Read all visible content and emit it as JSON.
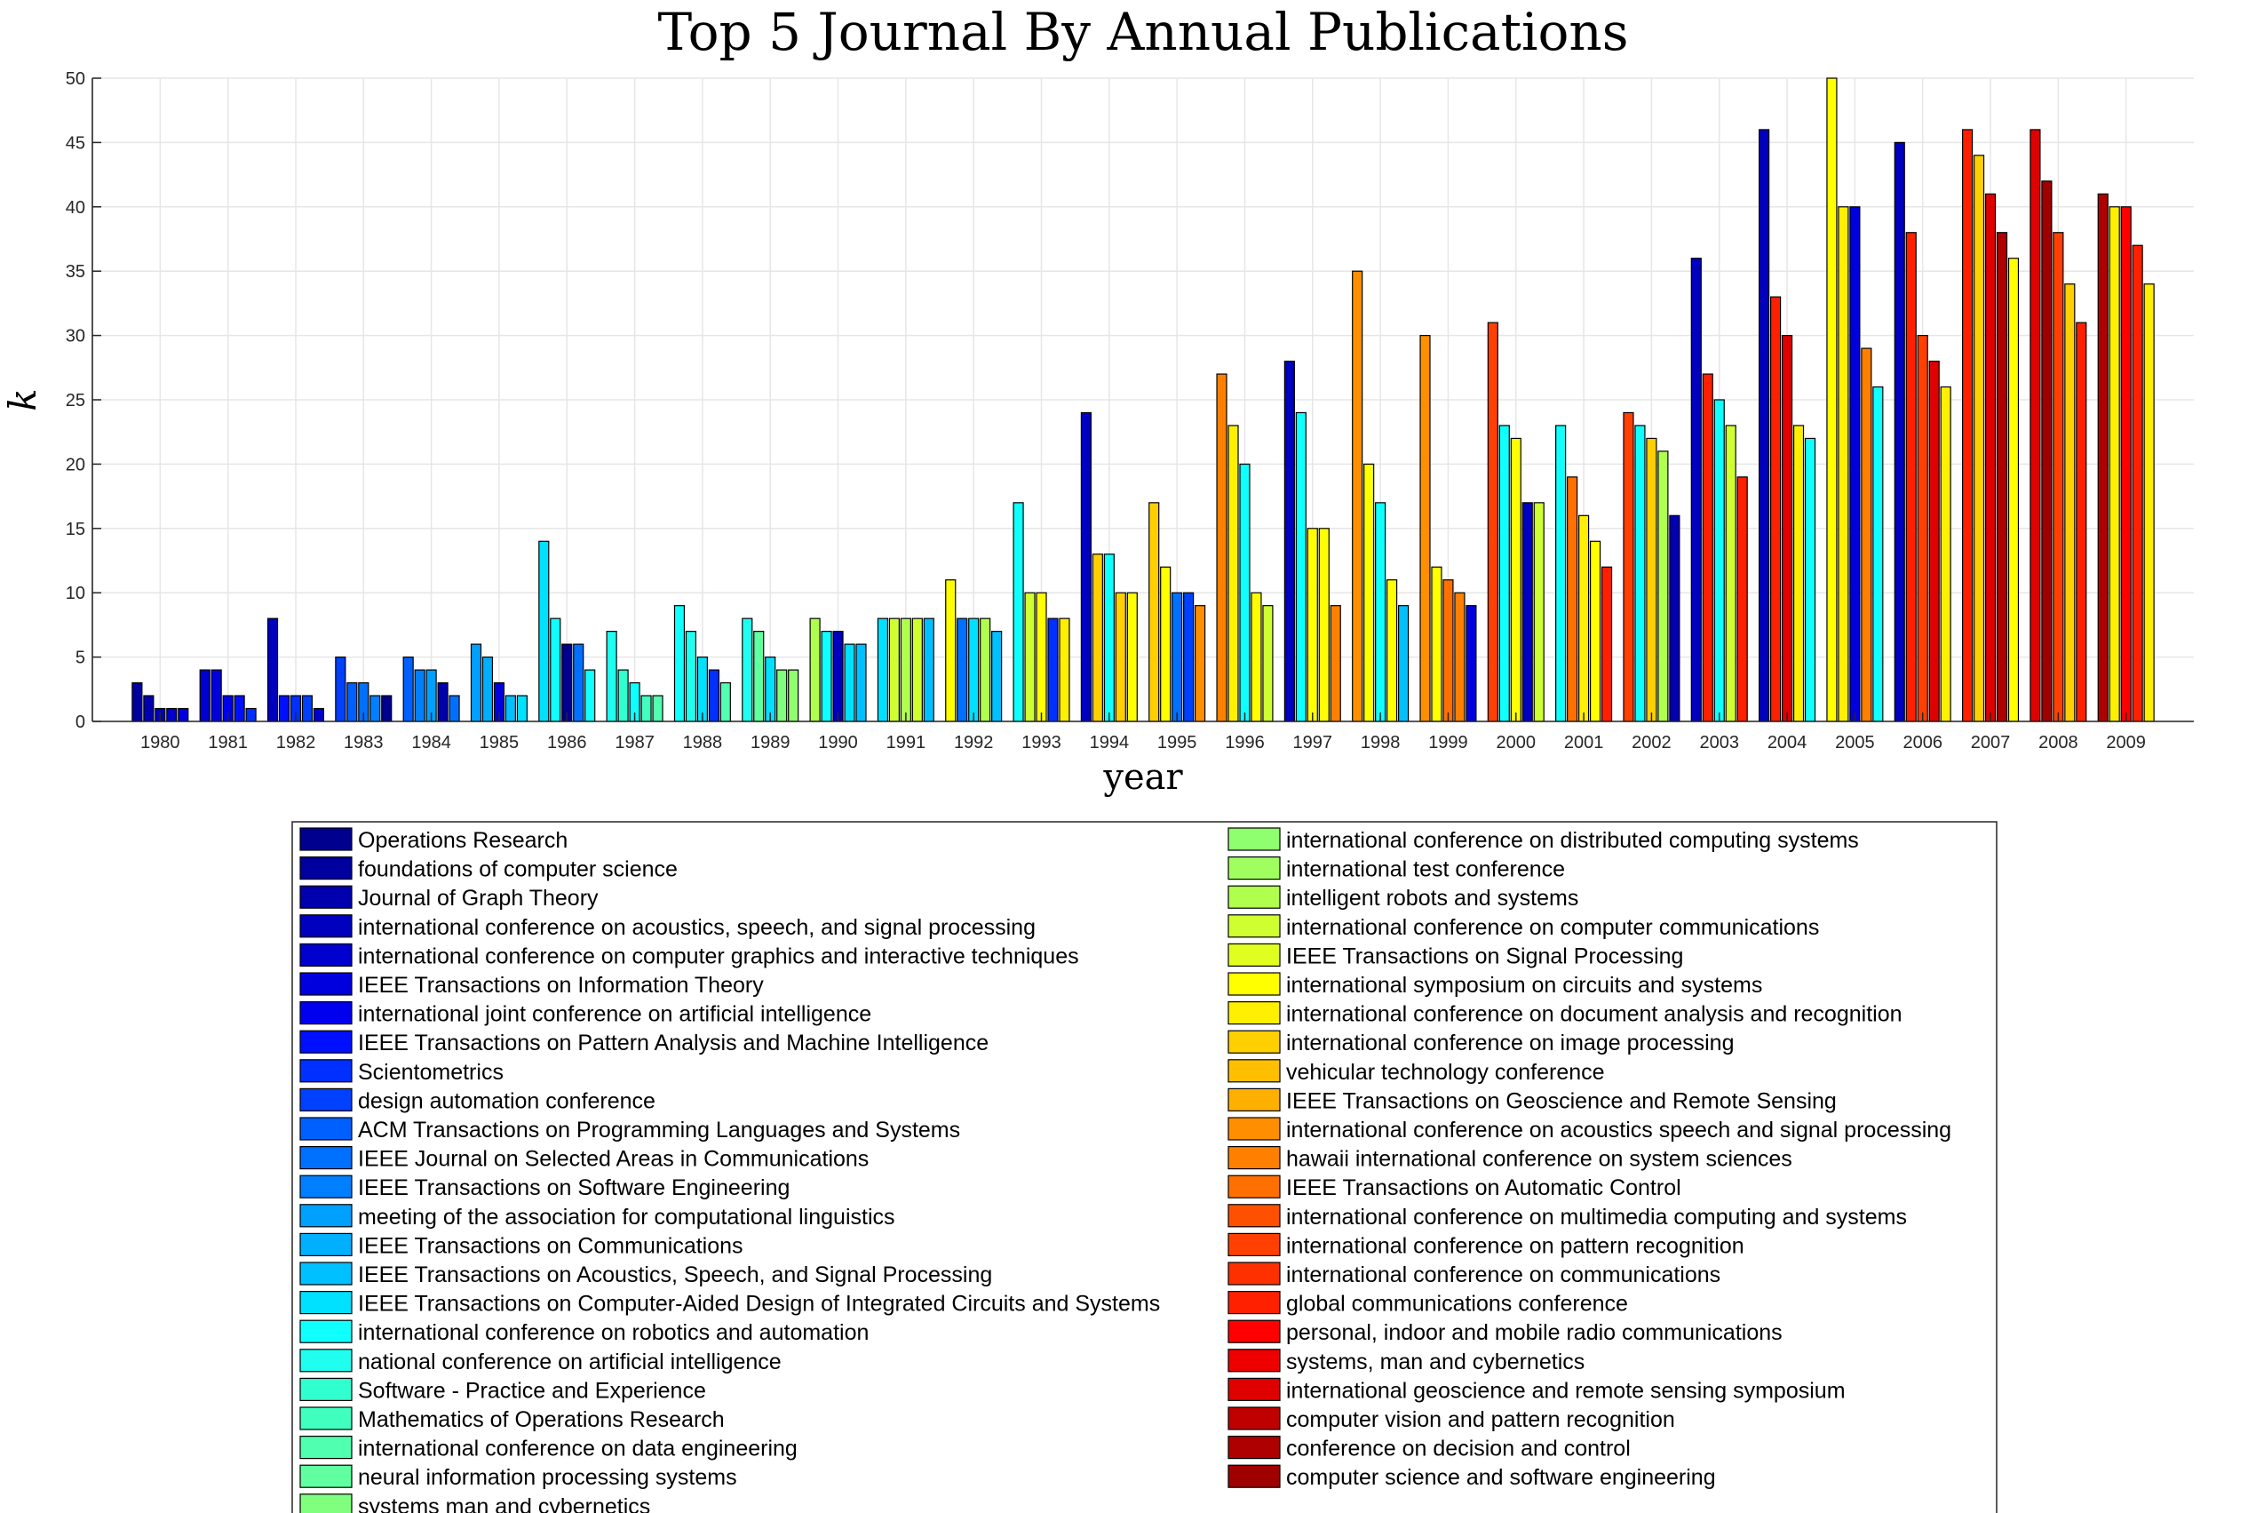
{
  "chart_data": {
    "type": "bar",
    "title": "Top 5 Journal By Annual Publications",
    "xlabel": "year",
    "ylabel": "k",
    "ylim": [
      0,
      50
    ],
    "yticks": [
      0,
      5,
      10,
      15,
      20,
      25,
      30,
      35,
      40,
      45,
      50
    ],
    "grid": true,
    "legend_position": "below",
    "categories": [
      "1980",
      "1981",
      "1982",
      "1983",
      "1984",
      "1985",
      "1986",
      "1987",
      "1988",
      "1989",
      "1990",
      "1991",
      "1992",
      "1993",
      "1994",
      "1995",
      "1996",
      "1997",
      "1998",
      "1999",
      "2000",
      "2001",
      "2002",
      "2003",
      "2004",
      "2005",
      "2006",
      "2007",
      "2008",
      "2009"
    ],
    "legend": [
      "Operations Research",
      "foundations of computer science",
      "Journal of Graph Theory",
      "international conference on acoustics, speech, and signal processing",
      "international conference on computer graphics and interactive techniques",
      "IEEE Transactions on Information Theory",
      "international joint conference on artificial intelligence",
      "IEEE Transactions on Pattern Analysis and Machine Intelligence",
      "Scientometrics",
      "design automation conference",
      "ACM Transactions on Programming Languages and Systems",
      "IEEE Journal on Selected Areas in Communications",
      "IEEE Transactions on Software Engineering",
      "meeting of the association for computational linguistics",
      "IEEE Transactions on Communications",
      "IEEE Transactions on Acoustics, Speech, and Signal Processing",
      "IEEE Transactions on Computer-Aided Design of Integrated Circuits and Systems",
      "international conference on robotics and automation",
      "national conference on artificial intelligence",
      "Software - Practice and Experience",
      "Mathematics of Operations Research",
      "international conference on data engineering",
      "neural information processing systems",
      "systems man and cybernetics",
      "international conference on distributed computing systems",
      "international test conference",
      "intelligent robots and systems",
      "international conference on computer communications",
      "IEEE Transactions on Signal Processing",
      "international symposium on circuits and systems",
      "international conference on document analysis and recognition",
      "international conference on image processing",
      "vehicular technology conference",
      "IEEE Transactions on Geoscience and Remote Sensing",
      "international conference on acoustics speech and signal processing",
      "hawaii international conference on system sciences",
      "IEEE Transactions on Automatic Control",
      "international conference on multimedia computing and systems",
      "international conference on pattern recognition",
      "international conference on communications",
      "global communications conference",
      "personal, indoor and mobile radio communications",
      "systems, man and cybernetics",
      "international geoscience and remote sensing symposium",
      "computer vision and pattern recognition",
      "conference on decision and control",
      "computer science and software engineering"
    ],
    "legend_colors": [
      "#00008f",
      "#00009f",
      "#0000af",
      "#0000bf",
      "#0000cf",
      "#0000df",
      "#0000ef",
      "#0010ff",
      "#0030ff",
      "#0040ff",
      "#0060ff",
      "#0070ff",
      "#0080ff",
      "#00a0ff",
      "#00b0ff",
      "#00c0ff",
      "#00e0ff",
      "#10ffff",
      "#20ffef",
      "#30ffcf",
      "#40ffbf",
      "#50ffaf",
      "#60ff9f",
      "#80ff7f",
      "#90ff6f",
      "#a0ff5f",
      "#b0ff4f",
      "#cfff30",
      "#e0ff20",
      "#ffff00",
      "#ffef00",
      "#ffcf00",
      "#ffbf00",
      "#ffaf00",
      "#ff8f00",
      "#ff8000",
      "#ff7000",
      "#ff5000",
      "#ff4000",
      "#ff3000",
      "#ff2000",
      "#ff0000",
      "#ef0000",
      "#df0000",
      "#bf0000",
      "#af0000",
      "#9f0000"
    ],
    "bar_colors": [
      [
        "#00009f",
        "#0000af",
        "#0000bf",
        "#0000cf",
        "#0000df"
      ],
      [
        "#0000cf",
        "#0000df",
        "#0000ef",
        "#0010ff",
        "#0030ff"
      ],
      [
        "#0000bf",
        "#0010ff",
        "#0030ff",
        "#0040ff",
        "#0000cf"
      ],
      [
        "#0040ff",
        "#0060ff",
        "#0070ff",
        "#0080ff",
        "#00008f"
      ],
      [
        "#0060ff",
        "#0080ff",
        "#00a0ff",
        "#0000af",
        "#0070ff"
      ],
      [
        "#00a0ff",
        "#00b0ff",
        "#0000df",
        "#00c0ff",
        "#00e0ff"
      ],
      [
        "#00e0ff",
        "#10ffff",
        "#00008f",
        "#0070ff",
        "#10ffff"
      ],
      [
        "#20ffef",
        "#30ffcf",
        "#10ffff",
        "#40ffbf",
        "#50ffaf"
      ],
      [
        "#10ffff",
        "#20ffef",
        "#00e0ff",
        "#0030ff",
        "#50ffaf"
      ],
      [
        "#20ffef",
        "#60ff9f",
        "#00e0ff",
        "#80ff7f",
        "#90ff6f"
      ],
      [
        "#b0ff4f",
        "#10ffff",
        "#0000bf",
        "#00e0ff",
        "#00c0ff"
      ],
      [
        "#00e0ff",
        "#cfff30",
        "#b0ff4f",
        "#cfff30",
        "#00c0ff"
      ],
      [
        "#ffff00",
        "#0070ff",
        "#00e0ff",
        "#b0ff4f",
        "#00c0ff"
      ],
      [
        "#10ffff",
        "#cfff30",
        "#ffff00",
        "#0030ff",
        "#ffef00"
      ],
      [
        "#0000bf",
        "#ffcf00",
        "#10ffff",
        "#ffcf00",
        "#ffff00"
      ],
      [
        "#ffcf00",
        "#ffff00",
        "#0070ff",
        "#0040ff",
        "#ff8f00"
      ],
      [
        "#ff8000",
        "#ffef00",
        "#10ffff",
        "#ffff00",
        "#cfff30"
      ],
      [
        "#0000bf",
        "#10ffff",
        "#ffff00",
        "#ffff00",
        "#ff8000"
      ],
      [
        "#ff8f00",
        "#ffff00",
        "#10ffff",
        "#ffff00",
        "#00c0ff"
      ],
      [
        "#ff8f00",
        "#ffff00",
        "#ff7000",
        "#ff8000",
        "#0000df"
      ],
      [
        "#ff4000",
        "#10ffff",
        "#ffff00",
        "#0000bf",
        "#cfff30"
      ],
      [
        "#10ffff",
        "#ff7000",
        "#ffef00",
        "#ffff00",
        "#ff2000"
      ],
      [
        "#ff4000",
        "#10ffff",
        "#ffcf00",
        "#b0ff4f",
        "#0000af"
      ],
      [
        "#0000bf",
        "#ff2000",
        "#10ffff",
        "#cfff30",
        "#ff2000"
      ],
      [
        "#0000bf",
        "#ff2000",
        "#df0000",
        "#ffef00",
        "#10ffff"
      ],
      [
        "#ffff00",
        "#ffef00",
        "#0000df",
        "#ff8000",
        "#10ffff"
      ],
      [
        "#0000bf",
        "#ff2000",
        "#ff4000",
        "#df0000",
        "#ffef00"
      ],
      [
        "#ff2000",
        "#ffcf00",
        "#df0000",
        "#af0000",
        "#ffff00"
      ],
      [
        "#df0000",
        "#9f0000",
        "#ff4000",
        "#ffcf00",
        "#ff2000"
      ],
      [
        "#af0000",
        "#ffef00",
        "#ff0000",
        "#ff2000",
        "#ffef00"
      ]
    ],
    "values": [
      [
        3,
        2,
        1,
        1,
        1
      ],
      [
        4,
        4,
        2,
        2,
        1
      ],
      [
        8,
        2,
        2,
        2,
        1
      ],
      [
        5,
        3,
        3,
        2,
        2
      ],
      [
        5,
        4,
        4,
        3,
        2
      ],
      [
        6,
        5,
        3,
        2,
        2
      ],
      [
        14,
        8,
        6,
        6,
        4
      ],
      [
        7,
        4,
        3,
        2,
        2
      ],
      [
        9,
        7,
        5,
        4,
        3
      ],
      [
        8,
        7,
        5,
        4,
        4
      ],
      [
        8,
        7,
        7,
        6,
        6
      ],
      [
        8,
        8,
        8,
        8,
        8
      ],
      [
        11,
        8,
        8,
        8,
        7
      ],
      [
        17,
        10,
        10,
        8,
        8
      ],
      [
        24,
        13,
        13,
        10,
        10
      ],
      [
        17,
        12,
        10,
        10,
        9
      ],
      [
        27,
        23,
        20,
        10,
        9
      ],
      [
        28,
        24,
        15,
        15,
        9
      ],
      [
        35,
        20,
        17,
        11,
        9
      ],
      [
        30,
        12,
        11,
        10,
        9
      ],
      [
        31,
        23,
        22,
        17,
        17
      ],
      [
        23,
        19,
        16,
        14,
        12
      ],
      [
        24,
        23,
        22,
        21,
        16
      ],
      [
        36,
        27,
        25,
        23,
        19
      ],
      [
        46,
        33,
        30,
        23,
        22
      ],
      [
        50,
        40,
        40,
        29,
        26
      ],
      [
        45,
        38,
        30,
        28,
        26
      ],
      [
        46,
        44,
        41,
        38,
        36
      ],
      [
        46,
        42,
        38,
        34,
        31
      ],
      [
        41,
        40,
        40,
        37,
        34
      ]
    ]
  }
}
